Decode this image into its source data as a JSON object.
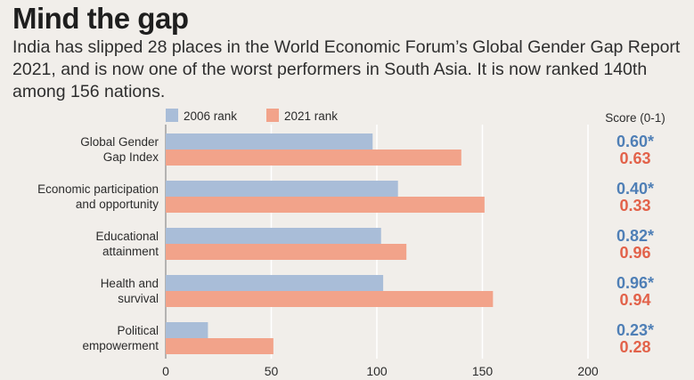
{
  "title": "Mind the gap",
  "subtitle": "India has slipped 28 places in the World Economic Forum’s Global Gender Gap Report 2021, and is now one of the worst performers in South Asia. It is now ranked 140th among 156 nations.",
  "score_header": "Score (0-1)",
  "colors": {
    "rank2006": "#a9bdd8",
    "rank2021": "#f2a38a",
    "score2006": "#4f7fb6",
    "score2021": "#e2624a",
    "grid": "#ffffff",
    "background": "#f1eeea"
  },
  "chart_data": {
    "type": "bar",
    "orientation": "horizontal",
    "categories": [
      [
        "Global Gender",
        "Gap Index"
      ],
      [
        "Economic participation",
        "and opportunity"
      ],
      [
        "Educational",
        "attainment"
      ],
      [
        "Health and",
        "survival"
      ],
      [
        "Political",
        "empowerment"
      ]
    ],
    "series": [
      {
        "name": "2006 rank",
        "values": [
          98,
          110,
          102,
          103,
          20
        ]
      },
      {
        "name": "2021 rank",
        "values": [
          140,
          151,
          114,
          155,
          51
        ]
      }
    ],
    "scores": [
      {
        "s2006": "0.60*",
        "s2021": "0.63"
      },
      {
        "s2006": "0.40*",
        "s2021": "0.33"
      },
      {
        "s2006": "0.82*",
        "s2021": "0.96"
      },
      {
        "s2006": "0.96*",
        "s2021": "0.94"
      },
      {
        "s2006": "0.23*",
        "s2021": "0.28"
      }
    ],
    "xlim": [
      0,
      200
    ],
    "xticks": [
      0,
      50,
      100,
      150,
      200
    ],
    "grid": true,
    "legend": "top-left"
  }
}
